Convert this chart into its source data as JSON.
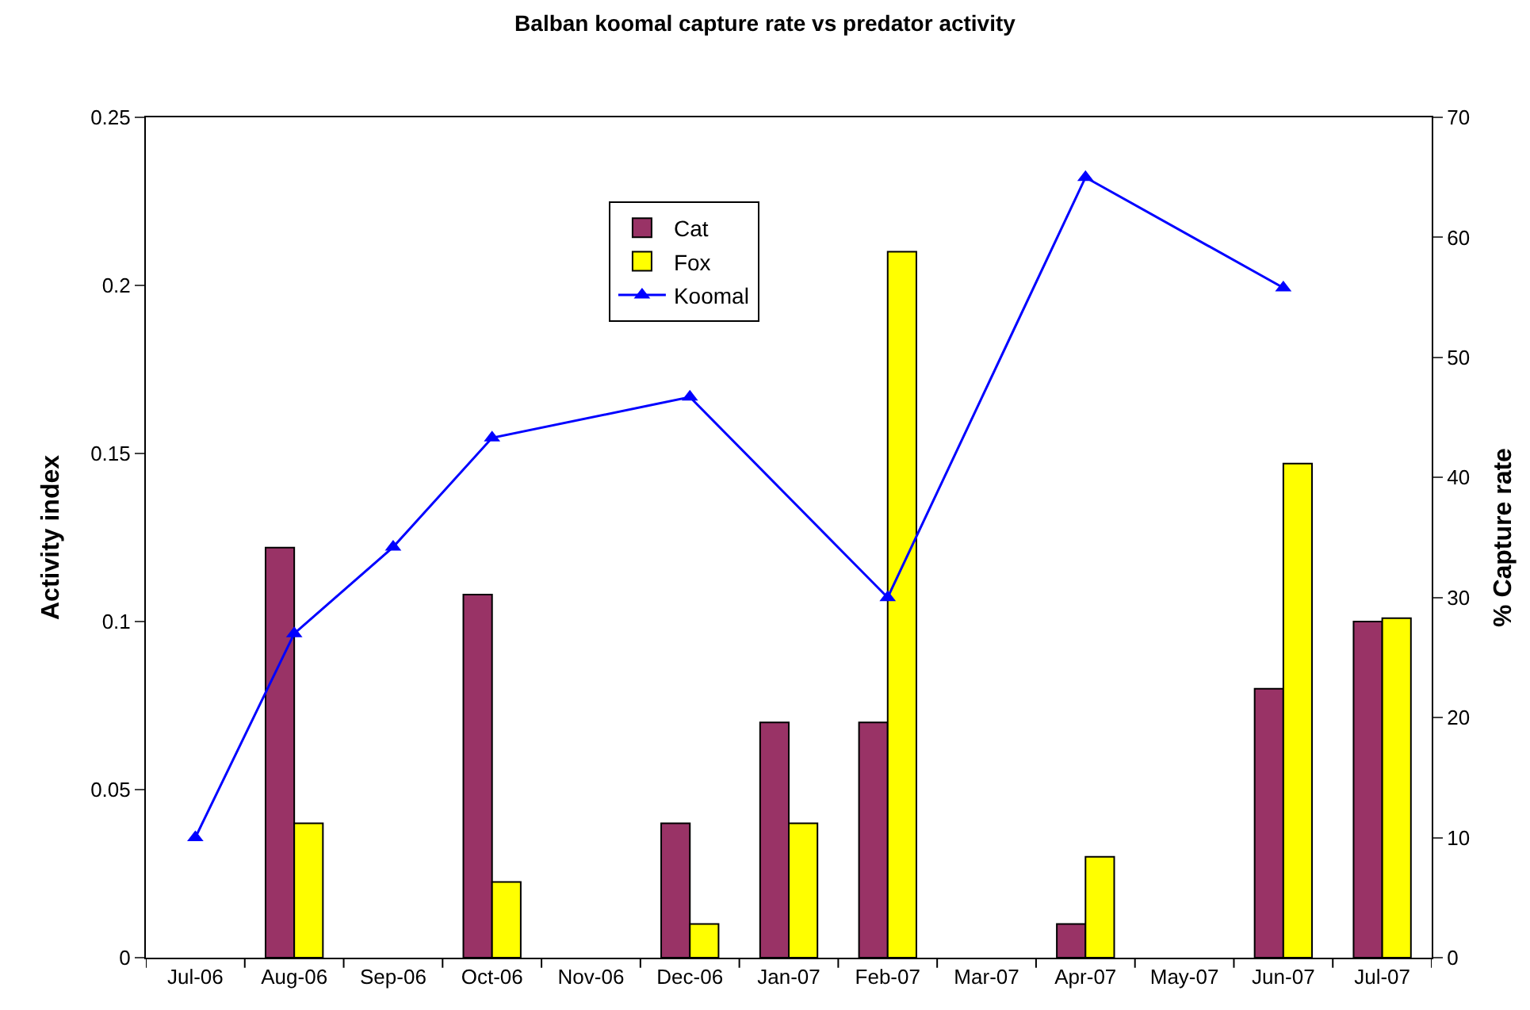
{
  "chart_data": {
    "type": "bar",
    "title": "Balban koomal capture rate vs predator activity",
    "ylabel": "Activity index",
    "y2label": "% Capture rate",
    "categories": [
      "Jul-06",
      "Aug-06",
      "Sep-06",
      "Oct-06",
      "Nov-06",
      "Dec-06",
      "Jan-07",
      "Feb-07",
      "Mar-07",
      "Apr-07",
      "May-07",
      "Jun-07",
      "Jul-07"
    ],
    "series": [
      {
        "name": "Cat",
        "color": "#993366",
        "values": [
          null,
          0.122,
          null,
          0.108,
          null,
          0.04,
          0.07,
          0.07,
          null,
          0.01,
          null,
          0.08,
          0.1
        ]
      },
      {
        "name": "Fox",
        "color": "#ffff00",
        "values": [
          null,
          0.04,
          null,
          0.0225,
          null,
          0.01,
          0.04,
          0.21,
          null,
          0.03,
          null,
          0.147,
          0.101
        ]
      },
      {
        "name": "Koomal",
        "color": "#0000ff",
        "type": "line",
        "axis": "y2",
        "marker": "triangle",
        "values": [
          10,
          27,
          34.2,
          43.3,
          null,
          46.7,
          null,
          30,
          null,
          65,
          null,
          55.8,
          null
        ]
      }
    ],
    "ylim": [
      0,
      0.25
    ],
    "yticks": [
      0,
      0.05,
      0.1,
      0.15,
      0.2,
      0.25
    ],
    "y2lim": [
      0,
      70
    ],
    "y2ticks": [
      0,
      10,
      20,
      30,
      40,
      50,
      60,
      70
    ],
    "legend": "top"
  }
}
